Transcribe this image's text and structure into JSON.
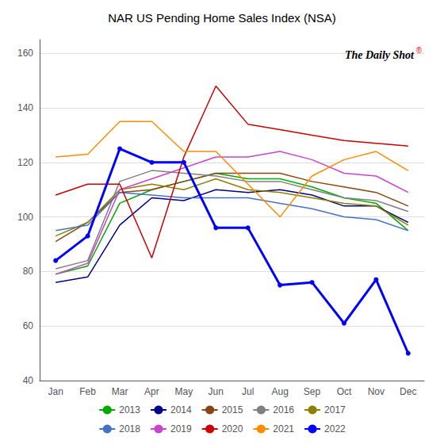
{
  "chart_data": {
    "type": "line",
    "title": "NAR US Pending Home Sales Index (NSA)",
    "categories": [
      "Jan",
      "Feb",
      "Mar",
      "Apr",
      "May",
      "Jun",
      "Jul",
      "Aug",
      "Sep",
      "Oct",
      "Nov",
      "Dec"
    ],
    "series": [
      {
        "name": "2013",
        "color": "#00aa00",
        "values": [
          79,
          82,
          105,
          110,
          113,
          116,
          114,
          114,
          111,
          107,
          105,
          95
        ]
      },
      {
        "name": "2014",
        "color": "#00008B",
        "values": [
          76,
          78,
          97,
          107,
          106,
          110,
          109,
          110,
          108,
          104,
          104,
          98
        ]
      },
      {
        "name": "2015",
        "color": "#8B4513",
        "values": [
          91,
          98,
          109,
          110,
          113,
          116,
          116,
          116,
          113,
          111,
          109,
          104
        ]
      },
      {
        "name": "2016",
        "color": "#808080",
        "values": [
          81,
          84,
          113,
          117,
          116,
          115,
          113,
          113,
          110,
          107,
          106,
          102
        ]
      },
      {
        "name": "2017",
        "color": "#8B8000",
        "values": [
          93,
          98,
          110,
          112,
          110,
          114,
          110,
          109,
          107,
          105,
          104,
          97
        ]
      },
      {
        "name": "2018",
        "color": "#4472C4",
        "values": [
          95,
          97,
          109,
          108,
          107,
          107,
          107,
          105,
          103,
          100,
          99,
          95
        ]
      },
      {
        "name": "2019",
        "color": "#CC44CC",
        "values": [
          79,
          83,
          110,
          114,
          118,
          122,
          122,
          124,
          121,
          116,
          115,
          109
        ]
      },
      {
        "name": "2020",
        "color": "#CC0000",
        "values": [
          108,
          112,
          112,
          85,
          122,
          148,
          134,
          132,
          130,
          128,
          127,
          126
        ]
      },
      {
        "name": "2021",
        "color": "#FF8C00",
        "values": [
          122,
          123,
          135,
          135,
          124,
          124,
          112,
          100,
          115,
          121,
          124,
          117
        ]
      },
      {
        "name": "2022",
        "color": "#0000FF",
        "marker": "circle",
        "values": [
          84,
          93,
          125,
          120,
          120,
          96,
          96,
          75,
          76,
          61,
          77,
          50
        ]
      }
    ],
    "ylim": [
      40,
      165
    ],
    "yticks": [
      40,
      60,
      80,
      100,
      120,
      140,
      160
    ],
    "grid": true,
    "legend": "bottom",
    "annotations": [
      "The Daily Shot",
      "®"
    ]
  }
}
